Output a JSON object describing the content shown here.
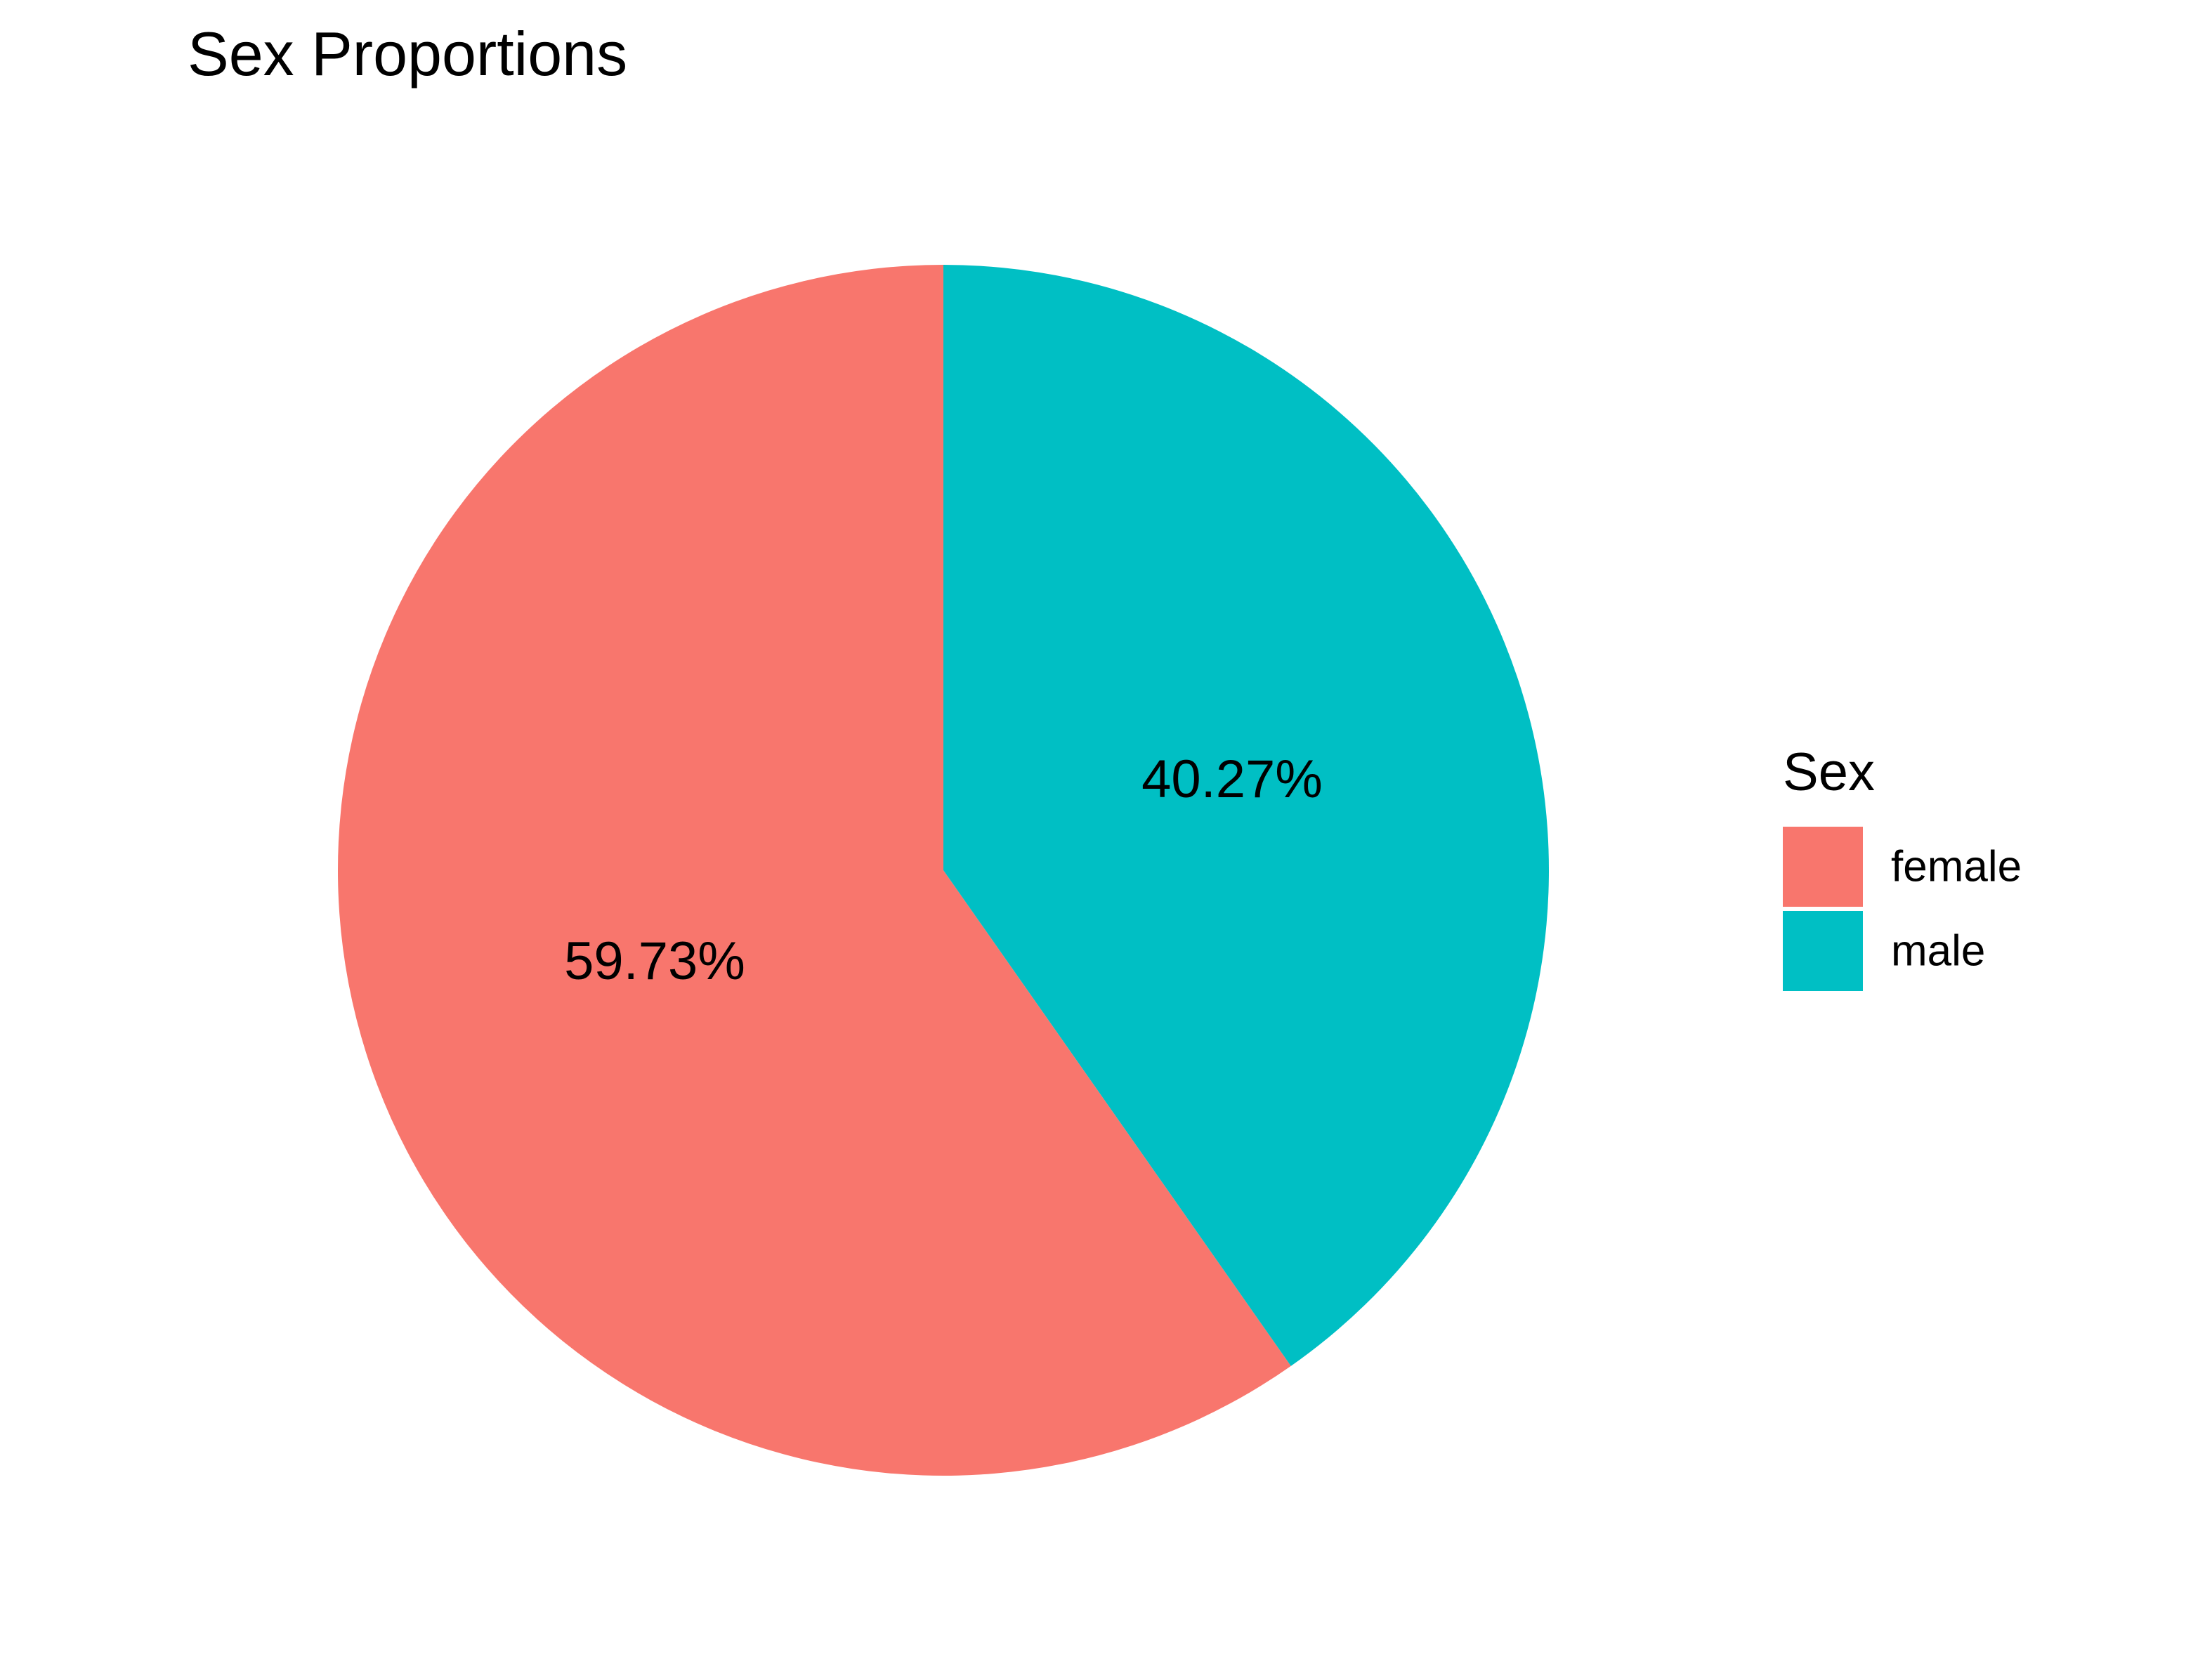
{
  "chart_data": {
    "type": "pie",
    "title": "Sex Proportions",
    "legend_title": "Sex",
    "legend_position": "right",
    "categories": [
      "female",
      "male"
    ],
    "values": [
      59.73,
      40.27
    ],
    "labels": [
      "59.73%",
      "40.27%"
    ],
    "colors": [
      "#F8766D",
      "#00BFC4"
    ],
    "start_angle": "12 o'clock",
    "direction": "counterclockwise for first category"
  }
}
